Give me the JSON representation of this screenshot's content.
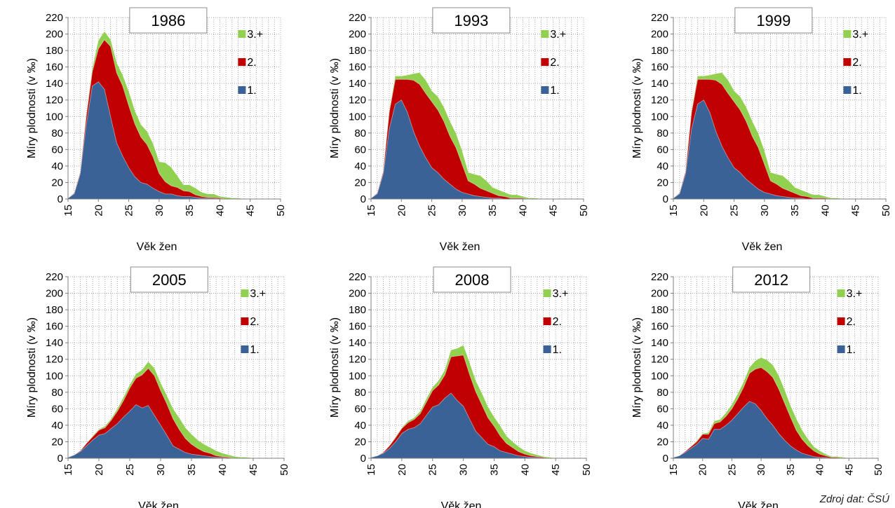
{
  "source_note": "Zdroj dat: ČSÚ",
  "colors": {
    "first": "#3A6296",
    "second": "#C00000",
    "third": "#92D050"
  },
  "chart_data": [
    {
      "type": "area",
      "title": "1986",
      "xlabel": "Věk žen",
      "ylabel": "Míry plodnosti (v ‰)",
      "xlim": [
        15,
        50
      ],
      "ylim": [
        0,
        220
      ],
      "xticks": [
        "15",
        "20",
        "25",
        "30",
        "35",
        "40",
        "45",
        "50"
      ],
      "yticks": [
        "0",
        "20",
        "40",
        "60",
        "80",
        "100",
        "120",
        "140",
        "160",
        "180",
        "200",
        "220"
      ],
      "grid": true,
      "legend": "right",
      "stacked": true,
      "x": [
        15,
        16,
        17,
        18,
        19,
        20,
        21,
        22,
        23,
        24,
        25,
        26,
        27,
        28,
        29,
        30,
        31,
        32,
        33,
        34,
        35,
        36,
        37,
        38,
        39,
        40,
        41,
        42,
        43,
        44,
        45,
        46,
        47,
        48,
        49
      ],
      "series": [
        {
          "name": "1.",
          "values": [
            1,
            6,
            30,
            90,
            137,
            142,
            133,
            100,
            68,
            52,
            38,
            27,
            20,
            18,
            13,
            9,
            6,
            6,
            4,
            3,
            3,
            2,
            1,
            1,
            1,
            0,
            0,
            0,
            0,
            0,
            0,
            0,
            0,
            0,
            0
          ]
        },
        {
          "name": "2.",
          "values": [
            0,
            1,
            2,
            10,
            17,
            40,
            60,
            85,
            85,
            85,
            75,
            64,
            55,
            48,
            38,
            22,
            15,
            10,
            10,
            7,
            6,
            3,
            2,
            1,
            1,
            1,
            0,
            0,
            0,
            0,
            0,
            0,
            0,
            0,
            0
          ]
        },
        {
          "name": "3.+",
          "values": [
            0,
            0,
            0,
            2,
            4,
            10,
            10,
            8,
            12,
            13,
            17,
            16,
            15,
            16,
            16,
            14,
            23,
            22,
            14,
            7,
            8,
            8,
            5,
            4,
            4,
            2,
            2,
            1,
            1,
            0,
            0,
            0,
            0,
            0,
            0
          ]
        }
      ]
    },
    {
      "type": "area",
      "title": "1993",
      "xlabel": "Věk žen",
      "ylabel": "Míry plodnosti (v ‰)",
      "xlim": [
        15,
        50
      ],
      "ylim": [
        0,
        220
      ],
      "xticks": [
        "15",
        "20",
        "25",
        "30",
        "35",
        "40",
        "45",
        "50"
      ],
      "yticks": [
        "0",
        "20",
        "40",
        "60",
        "80",
        "100",
        "120",
        "140",
        "160",
        "180",
        "200",
        "220"
      ],
      "grid": true,
      "legend": "right",
      "stacked": true,
      "x": [
        15,
        16,
        17,
        18,
        19,
        20,
        21,
        22,
        23,
        24,
        25,
        26,
        27,
        28,
        29,
        30,
        31,
        32,
        33,
        34,
        35,
        36,
        37,
        38,
        39,
        40,
        41,
        42,
        43,
        44,
        45,
        46,
        47,
        48,
        49
      ],
      "series": [
        {
          "name": "1.",
          "values": [
            1,
            6,
            30,
            85,
            115,
            120,
            105,
            82,
            64,
            50,
            38,
            32,
            24,
            18,
            12,
            8,
            6,
            4,
            3,
            2,
            1,
            1,
            0,
            0,
            0,
            0,
            0,
            0,
            0,
            0,
            0,
            0,
            0,
            0,
            0
          ]
        },
        {
          "name": "2.",
          "values": [
            0,
            1,
            3,
            20,
            30,
            25,
            40,
            62,
            75,
            78,
            80,
            76,
            70,
            58,
            50,
            34,
            16,
            14,
            10,
            8,
            6,
            3,
            3,
            1,
            1,
            1,
            0,
            0,
            0,
            0,
            0,
            0,
            0,
            0,
            0
          ]
        },
        {
          "name": "3.+",
          "values": [
            0,
            0,
            0,
            2,
            4,
            4,
            5,
            8,
            14,
            16,
            13,
            16,
            17,
            18,
            17,
            16,
            10,
            12,
            15,
            12,
            7,
            7,
            5,
            4,
            4,
            2,
            1,
            1,
            0,
            0,
            0,
            0,
            0,
            0,
            0
          ]
        }
      ]
    },
    {
      "type": "area",
      "title": "1999",
      "xlabel": "Věk žen",
      "ylabel": "Míry plodnosti (v ‰)",
      "xlim": [
        15,
        50
      ],
      "ylim": [
        0,
        220
      ],
      "xticks": [
        "15",
        "20",
        "25",
        "30",
        "35",
        "40",
        "45",
        "50"
      ],
      "yticks": [
        "0",
        "20",
        "40",
        "60",
        "80",
        "100",
        "120",
        "140",
        "160",
        "180",
        "200",
        "220"
      ],
      "grid": true,
      "legend": "right",
      "stacked": true,
      "x": [
        15,
        16,
        17,
        18,
        19,
        20,
        21,
        22,
        23,
        24,
        25,
        26,
        27,
        28,
        29,
        30,
        31,
        32,
        33,
        34,
        35,
        36,
        37,
        38,
        39,
        40,
        41,
        42,
        43,
        44,
        45,
        46,
        47,
        48,
        49
      ],
      "series": [
        {
          "name": "1.",
          "values": [
            1,
            6,
            30,
            85,
            115,
            120,
            105,
            82,
            64,
            50,
            38,
            32,
            24,
            18,
            12,
            8,
            6,
            4,
            3,
            2,
            1,
            1,
            0,
            0,
            0,
            0,
            0,
            0,
            0,
            0,
            0,
            0,
            0,
            0,
            0
          ]
        },
        {
          "name": "2.",
          "values": [
            0,
            1,
            3,
            20,
            30,
            25,
            40,
            62,
            75,
            78,
            80,
            76,
            70,
            58,
            50,
            34,
            16,
            14,
            10,
            8,
            6,
            3,
            3,
            1,
            1,
            1,
            0,
            0,
            0,
            0,
            0,
            0,
            0,
            0,
            0
          ]
        },
        {
          "name": "3.+",
          "values": [
            0,
            0,
            0,
            2,
            4,
            4,
            5,
            8,
            14,
            16,
            13,
            16,
            17,
            18,
            17,
            16,
            10,
            12,
            15,
            12,
            7,
            7,
            5,
            4,
            4,
            2,
            1,
            1,
            0,
            0,
            0,
            0,
            0,
            0,
            0
          ]
        }
      ]
    },
    {
      "type": "area",
      "title": "2005",
      "xlabel": "Věk žen",
      "ylabel": "Míry plodnosti (v ‰)",
      "xlim": [
        15,
        50
      ],
      "ylim": [
        0,
        220
      ],
      "xticks": [
        "15",
        "20",
        "25",
        "30",
        "35",
        "40",
        "45",
        "50"
      ],
      "yticks": [
        "0",
        "20",
        "40",
        "60",
        "80",
        "100",
        "120",
        "140",
        "160",
        "180",
        "200",
        "220"
      ],
      "grid": true,
      "legend": "right",
      "stacked": true,
      "x": [
        15,
        16,
        17,
        18,
        19,
        20,
        21,
        22,
        23,
        24,
        25,
        26,
        27,
        28,
        29,
        30,
        31,
        32,
        33,
        34,
        35,
        36,
        37,
        38,
        39,
        40,
        41,
        42,
        43,
        44,
        45,
        46,
        47,
        48,
        49
      ],
      "series": [
        {
          "name": "1.",
          "values": [
            1,
            4,
            8,
            15,
            22,
            28,
            30,
            36,
            42,
            50,
            57,
            65,
            61,
            64,
            52,
            40,
            28,
            15,
            11,
            7,
            5,
            4,
            3,
            2,
            1,
            1,
            0,
            0,
            0,
            0,
            0,
            0,
            0,
            0,
            0
          ]
        },
        {
          "name": "2.",
          "values": [
            0,
            0,
            1,
            3,
            4,
            6,
            7,
            10,
            15,
            20,
            28,
            32,
            40,
            45,
            48,
            42,
            38,
            33,
            24,
            17,
            12,
            8,
            5,
            4,
            2,
            1,
            1,
            0,
            0,
            0,
            0,
            0,
            0,
            0,
            0
          ]
        },
        {
          "name": "3.+",
          "values": [
            0,
            0,
            0,
            0,
            1,
            1,
            2,
            2,
            3,
            4,
            4,
            5,
            6,
            8,
            9,
            9,
            10,
            12,
            14,
            13,
            12,
            10,
            9,
            7,
            6,
            4,
            3,
            2,
            1,
            1,
            0,
            0,
            0,
            0,
            0
          ]
        }
      ]
    },
    {
      "type": "area",
      "title": "2008",
      "xlabel": "Věk žen",
      "ylabel": "Míry plodnosti (v ‰)",
      "xlim": [
        15,
        50
      ],
      "ylim": [
        0,
        220
      ],
      "xticks": [
        "15",
        "20",
        "25",
        "30",
        "35",
        "40",
        "45",
        "50"
      ],
      "yticks": [
        "0",
        "20",
        "40",
        "60",
        "80",
        "100",
        "120",
        "140",
        "160",
        "180",
        "200",
        "220"
      ],
      "grid": true,
      "legend": "right",
      "stacked": true,
      "x": [
        15,
        16,
        17,
        18,
        19,
        20,
        21,
        22,
        23,
        24,
        25,
        26,
        27,
        28,
        29,
        30,
        31,
        32,
        33,
        34,
        35,
        36,
        37,
        38,
        39,
        40,
        41,
        42,
        43,
        44,
        45,
        46,
        47,
        48,
        49
      ],
      "series": [
        {
          "name": "1.",
          "values": [
            1,
            3,
            6,
            12,
            20,
            30,
            35,
            37,
            42,
            52,
            62,
            65,
            73,
            79,
            70,
            63,
            48,
            33,
            25,
            17,
            14,
            9,
            7,
            5,
            3,
            2,
            1,
            1,
            0,
            0,
            0,
            0,
            0,
            0,
            0
          ]
        },
        {
          "name": "2.",
          "values": [
            0,
            0,
            1,
            3,
            5,
            6,
            8,
            10,
            12,
            16,
            20,
            24,
            28,
            44,
            54,
            62,
            54,
            48,
            40,
            32,
            25,
            18,
            11,
            8,
            5,
            3,
            2,
            1,
            1,
            0,
            0,
            0,
            0,
            0,
            0
          ]
        },
        {
          "name": "3.+",
          "values": [
            0,
            0,
            0,
            0,
            1,
            1,
            2,
            2,
            3,
            4,
            4,
            5,
            6,
            8,
            9,
            12,
            14,
            13,
            14,
            13,
            11,
            12,
            9,
            7,
            6,
            4,
            3,
            2,
            1,
            1,
            0,
            0,
            0,
            0,
            0
          ]
        }
      ]
    },
    {
      "type": "area",
      "title": "2012",
      "xlabel": "Věk žen",
      "ylabel": "Míry plodnosti (v ‰)",
      "xlim": [
        15,
        50
      ],
      "ylim": [
        0,
        220
      ],
      "xticks": [
        "15",
        "20",
        "25",
        "30",
        "35",
        "40",
        "45",
        "50"
      ],
      "yticks": [
        "0",
        "20",
        "40",
        "60",
        "80",
        "100",
        "120",
        "140",
        "160",
        "180",
        "200",
        "220"
      ],
      "grid": true,
      "legend": "right",
      "stacked": true,
      "x": [
        15,
        16,
        17,
        18,
        19,
        20,
        21,
        22,
        23,
        24,
        25,
        26,
        27,
        28,
        29,
        30,
        31,
        32,
        33,
        34,
        35,
        36,
        37,
        38,
        39,
        40,
        41,
        42,
        43,
        44,
        45,
        46,
        47,
        48,
        49
      ],
      "series": [
        {
          "name": "1.",
          "values": [
            1,
            3,
            7,
            12,
            17,
            24,
            23,
            35,
            35,
            40,
            46,
            54,
            62,
            69,
            66,
            58,
            48,
            40,
            30,
            22,
            15,
            10,
            6,
            4,
            2,
            1,
            1,
            0,
            0,
            0,
            0,
            0,
            0,
            0,
            0
          ]
        },
        {
          "name": "2.",
          "values": [
            0,
            0,
            1,
            2,
            3,
            5,
            6,
            7,
            9,
            11,
            14,
            18,
            24,
            34,
            42,
            52,
            57,
            58,
            54,
            45,
            35,
            24,
            17,
            11,
            7,
            4,
            2,
            1,
            1,
            0,
            0,
            0,
            0,
            0,
            0
          ]
        },
        {
          "name": "3.+",
          "values": [
            0,
            0,
            0,
            0,
            1,
            1,
            2,
            3,
            3,
            4,
            5,
            6,
            6,
            7,
            10,
            12,
            14,
            15,
            16,
            16,
            14,
            14,
            11,
            8,
            5,
            4,
            2,
            1,
            1,
            1,
            0,
            0,
            0,
            0,
            0
          ]
        }
      ]
    }
  ]
}
